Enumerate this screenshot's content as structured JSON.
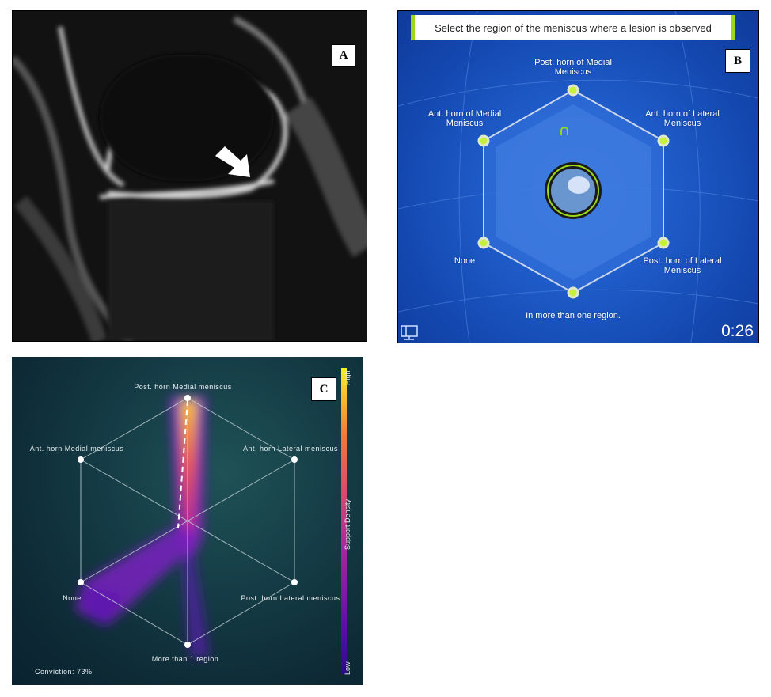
{
  "panels": {
    "a": {
      "label": "A"
    },
    "b": {
      "label": "B",
      "prompt": "Select the region of the meniscus where a lesion is observed",
      "options": [
        "Post. horn of Medial\nMeniscus",
        "Ant. horn of Lateral\nMeniscus",
        "Post. horn of Lateral\nMeniscus",
        "In more than one region.",
        "None",
        "Ant. horn of Medial\nMeniscus"
      ],
      "timer": "0:26",
      "accent_color": "#9bd81a",
      "background_color": "#1f5cc9"
    },
    "c": {
      "label": "C",
      "options": [
        "Post. horn Medial meniscus",
        "Ant. horn Lateral meniscus",
        "Post. horn Lateral meniscus",
        "More than 1 region",
        "None",
        "Ant. horn Medial meniscus"
      ],
      "conviction": "Conviction: 73%",
      "colorbar": {
        "title": "Support Density",
        "high": "High",
        "low": "Low"
      }
    }
  }
}
